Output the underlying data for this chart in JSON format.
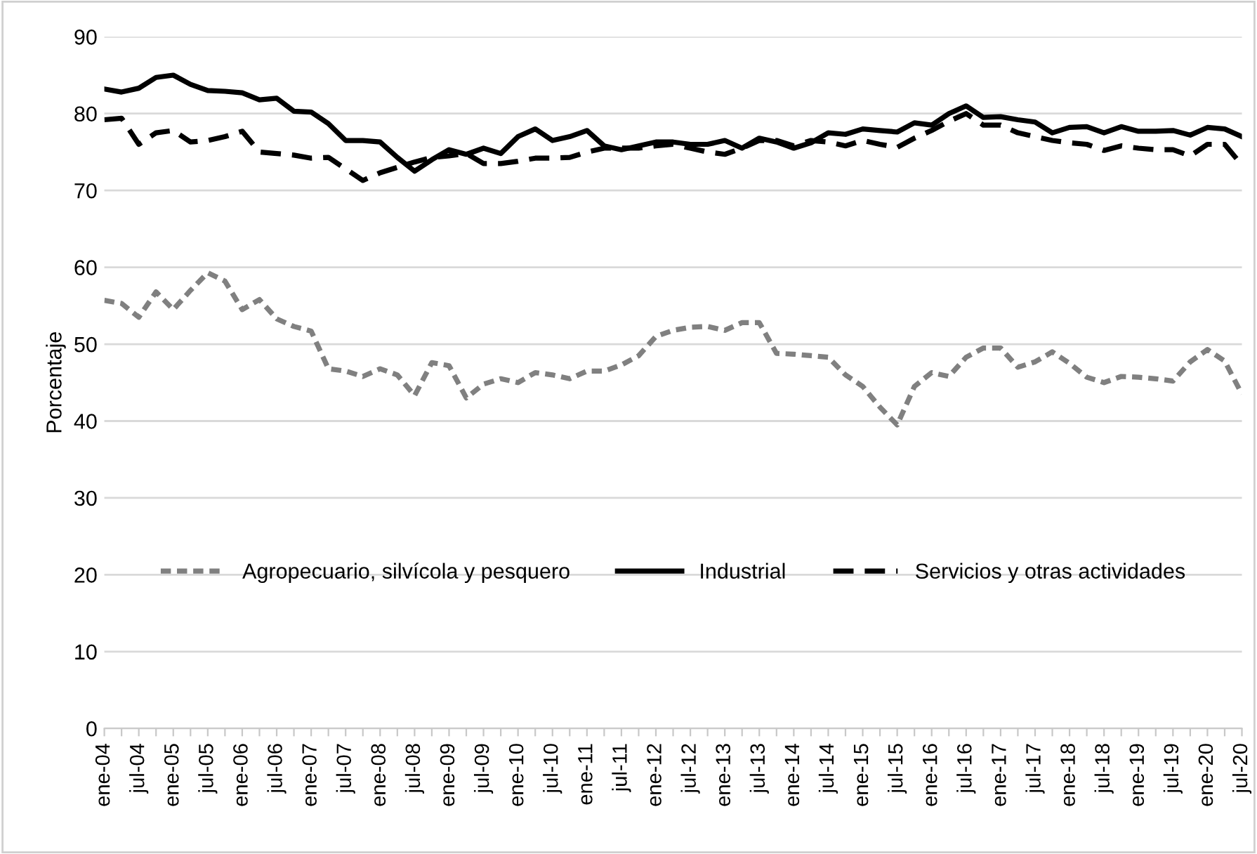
{
  "chart_data": {
    "type": "line",
    "ylabel": "Porcentaje",
    "categories": [
      "ene-04",
      null,
      "jul-04",
      null,
      "ene-05",
      null,
      "jul-05",
      null,
      "ene-06",
      null,
      "jul-06",
      null,
      "ene-07",
      null,
      "jul-07",
      null,
      "ene-08",
      null,
      "jul-08",
      null,
      "ene-09",
      null,
      "jul-09",
      null,
      "ene-10",
      null,
      "jul-10",
      null,
      "ene-11",
      null,
      "jul-11",
      null,
      "ene-12",
      null,
      "jul-12",
      null,
      "ene-13",
      null,
      "jul-13",
      null,
      "ene-14",
      null,
      "jul-14",
      null,
      "ene-15",
      null,
      "jul-15",
      null,
      "ene-16",
      null,
      "jul-16",
      null,
      "ene-17",
      null,
      "jul-17",
      null,
      "ene-18",
      null,
      "jul-18",
      null,
      "ene-19",
      null,
      "jul-19",
      null,
      "ene-20",
      null,
      "jul-20"
    ],
    "series": [
      {
        "name": "Agropecuario, silvícola y pesquero",
        "color": "#808080",
        "line_style": "dotted",
        "values": [
          55.7,
          55.3,
          53.5,
          56.8,
          54.5,
          57.0,
          59.3,
          58.2,
          54.5,
          55.8,
          53.3,
          52.3,
          51.7,
          46.8,
          46.5,
          45.8,
          46.8,
          46.0,
          43.3,
          47.6,
          47.2,
          43.0,
          44.8,
          45.5,
          45.0,
          46.3,
          46.0,
          45.5,
          46.5,
          46.5,
          47.3,
          48.5,
          51.0,
          51.8,
          52.2,
          52.3,
          51.8,
          52.8,
          52.8,
          48.8,
          48.7,
          48.5,
          48.3,
          46.0,
          44.5,
          41.8,
          39.5,
          44.5,
          46.3,
          45.8,
          48.3,
          49.5,
          49.5,
          47.0,
          47.7,
          49.0,
          47.5,
          45.7,
          45.0,
          45.8,
          45.7,
          45.5,
          45.2,
          47.7,
          49.3,
          47.8,
          43.5
        ]
      },
      {
        "name": "Industrial",
        "color": "#000000",
        "line_style": "solid",
        "values": [
          83.2,
          82.8,
          83.3,
          84.7,
          85.0,
          83.8,
          83.0,
          82.9,
          82.7,
          81.8,
          82.0,
          80.3,
          80.2,
          78.7,
          76.5,
          76.5,
          76.3,
          74.3,
          72.5,
          74.0,
          75.3,
          74.7,
          75.5,
          74.8,
          77.0,
          78.0,
          76.5,
          77.0,
          77.8,
          75.8,
          75.3,
          75.8,
          76.3,
          76.3,
          76.0,
          76.0,
          76.5,
          75.5,
          76.8,
          76.3,
          75.5,
          76.2,
          77.5,
          77.3,
          78.0,
          77.8,
          77.6,
          78.8,
          78.5,
          80.0,
          81.0,
          79.5,
          79.6,
          79.2,
          78.9,
          77.5,
          78.2,
          78.3,
          77.5,
          78.3,
          77.7,
          77.7,
          77.8,
          77.2,
          78.2,
          78.0,
          77.0
        ]
      },
      {
        "name": "Servicios y otras actividades",
        "color": "#000000",
        "line_style": "dashed",
        "values": [
          79.2,
          79.4,
          76.0,
          77.5,
          77.8,
          76.3,
          76.5,
          77.0,
          77.7,
          75.0,
          74.8,
          74.6,
          74.2,
          74.3,
          72.8,
          71.3,
          72.3,
          73.0,
          73.7,
          74.3,
          74.5,
          74.8,
          73.5,
          73.5,
          73.8,
          74.2,
          74.2,
          74.3,
          75.0,
          75.5,
          75.5,
          75.5,
          75.8,
          76.0,
          75.5,
          75.0,
          74.7,
          75.5,
          76.5,
          76.5,
          75.8,
          76.5,
          76.3,
          75.8,
          76.5,
          76.0,
          75.6,
          76.8,
          77.8,
          79.0,
          80.0,
          78.5,
          78.5,
          77.5,
          77.0,
          76.5,
          76.2,
          76.0,
          75.2,
          75.8,
          75.5,
          75.3,
          75.3,
          74.5,
          76.0,
          76.0,
          73.3
        ]
      }
    ],
    "ylim": [
      0,
      90
    ],
    "yticks": [
      0,
      10,
      20,
      30,
      40,
      50,
      60,
      70,
      80,
      90
    ],
    "grid": "y",
    "legend": "center"
  }
}
